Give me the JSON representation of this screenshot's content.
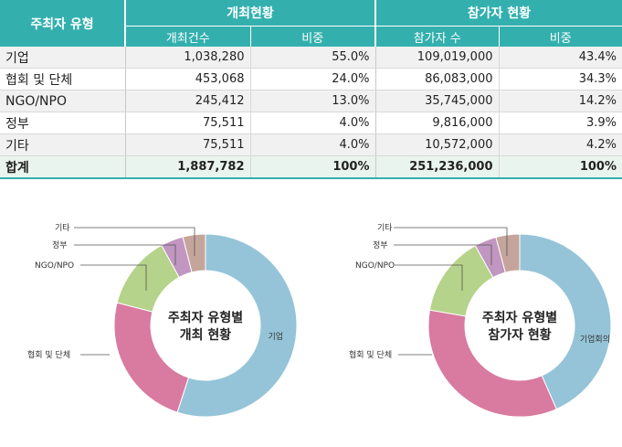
{
  "table": {
    "header_type": "주최자 유형",
    "group_events": "개최현황",
    "group_participants": "참가자 현황",
    "sub_event_count": "개최건수",
    "sub_event_share": "비중",
    "sub_participant_count": "참가자 수",
    "sub_participant_share": "비중",
    "rows": [
      {
        "type": "기업",
        "events": "1,038,280",
        "events_share": "55.0%",
        "participants": "109,019,000",
        "participants_share": "43.4%"
      },
      {
        "type": "협회 및 단체",
        "events": "453,068",
        "events_share": "24.0%",
        "participants": "86,083,000",
        "participants_share": "34.3%"
      },
      {
        "type": "NGO/NPO",
        "events": "245,412",
        "events_share": "13.0%",
        "participants": "35,745,000",
        "participants_share": "14.2%"
      },
      {
        "type": "정부",
        "events": "75,511",
        "events_share": "4.0%",
        "participants": "9,816,000",
        "participants_share": "3.9%"
      },
      {
        "type": "기타",
        "events": "75,511",
        "events_share": "4.0%",
        "participants": "10,572,000",
        "participants_share": "4.2%"
      }
    ],
    "total": {
      "type": "합계",
      "events": "1,887,782",
      "events_share": "100%",
      "participants": "251,236,000",
      "participants_share": "100%"
    }
  },
  "chart_data": [
    {
      "type": "pie",
      "style": "donut",
      "center_label_line1": "주최자 유형별",
      "center_label_line2": "개최 현황",
      "categories": [
        "기업",
        "협회 및 단체",
        "NGO/NPO",
        "정부",
        "기타"
      ],
      "values": [
        55.0,
        24.0,
        13.0,
        4.0,
        4.0
      ],
      "colors": [
        "#95c4d8",
        "#d97aa0",
        "#b5d38a",
        "#c196c0",
        "#c5a59b"
      ]
    },
    {
      "type": "pie",
      "style": "donut",
      "center_label_line1": "주최자 유형별",
      "center_label_line2": "참가자 현황",
      "categories": [
        "기업회의",
        "협회 및 단체",
        "NGO/NPO",
        "정부",
        "기타"
      ],
      "values": [
        43.4,
        34.3,
        14.2,
        3.9,
        4.2
      ],
      "colors": [
        "#95c4d8",
        "#d97aa0",
        "#b5d38a",
        "#c196c0",
        "#c5a59b"
      ]
    }
  ]
}
